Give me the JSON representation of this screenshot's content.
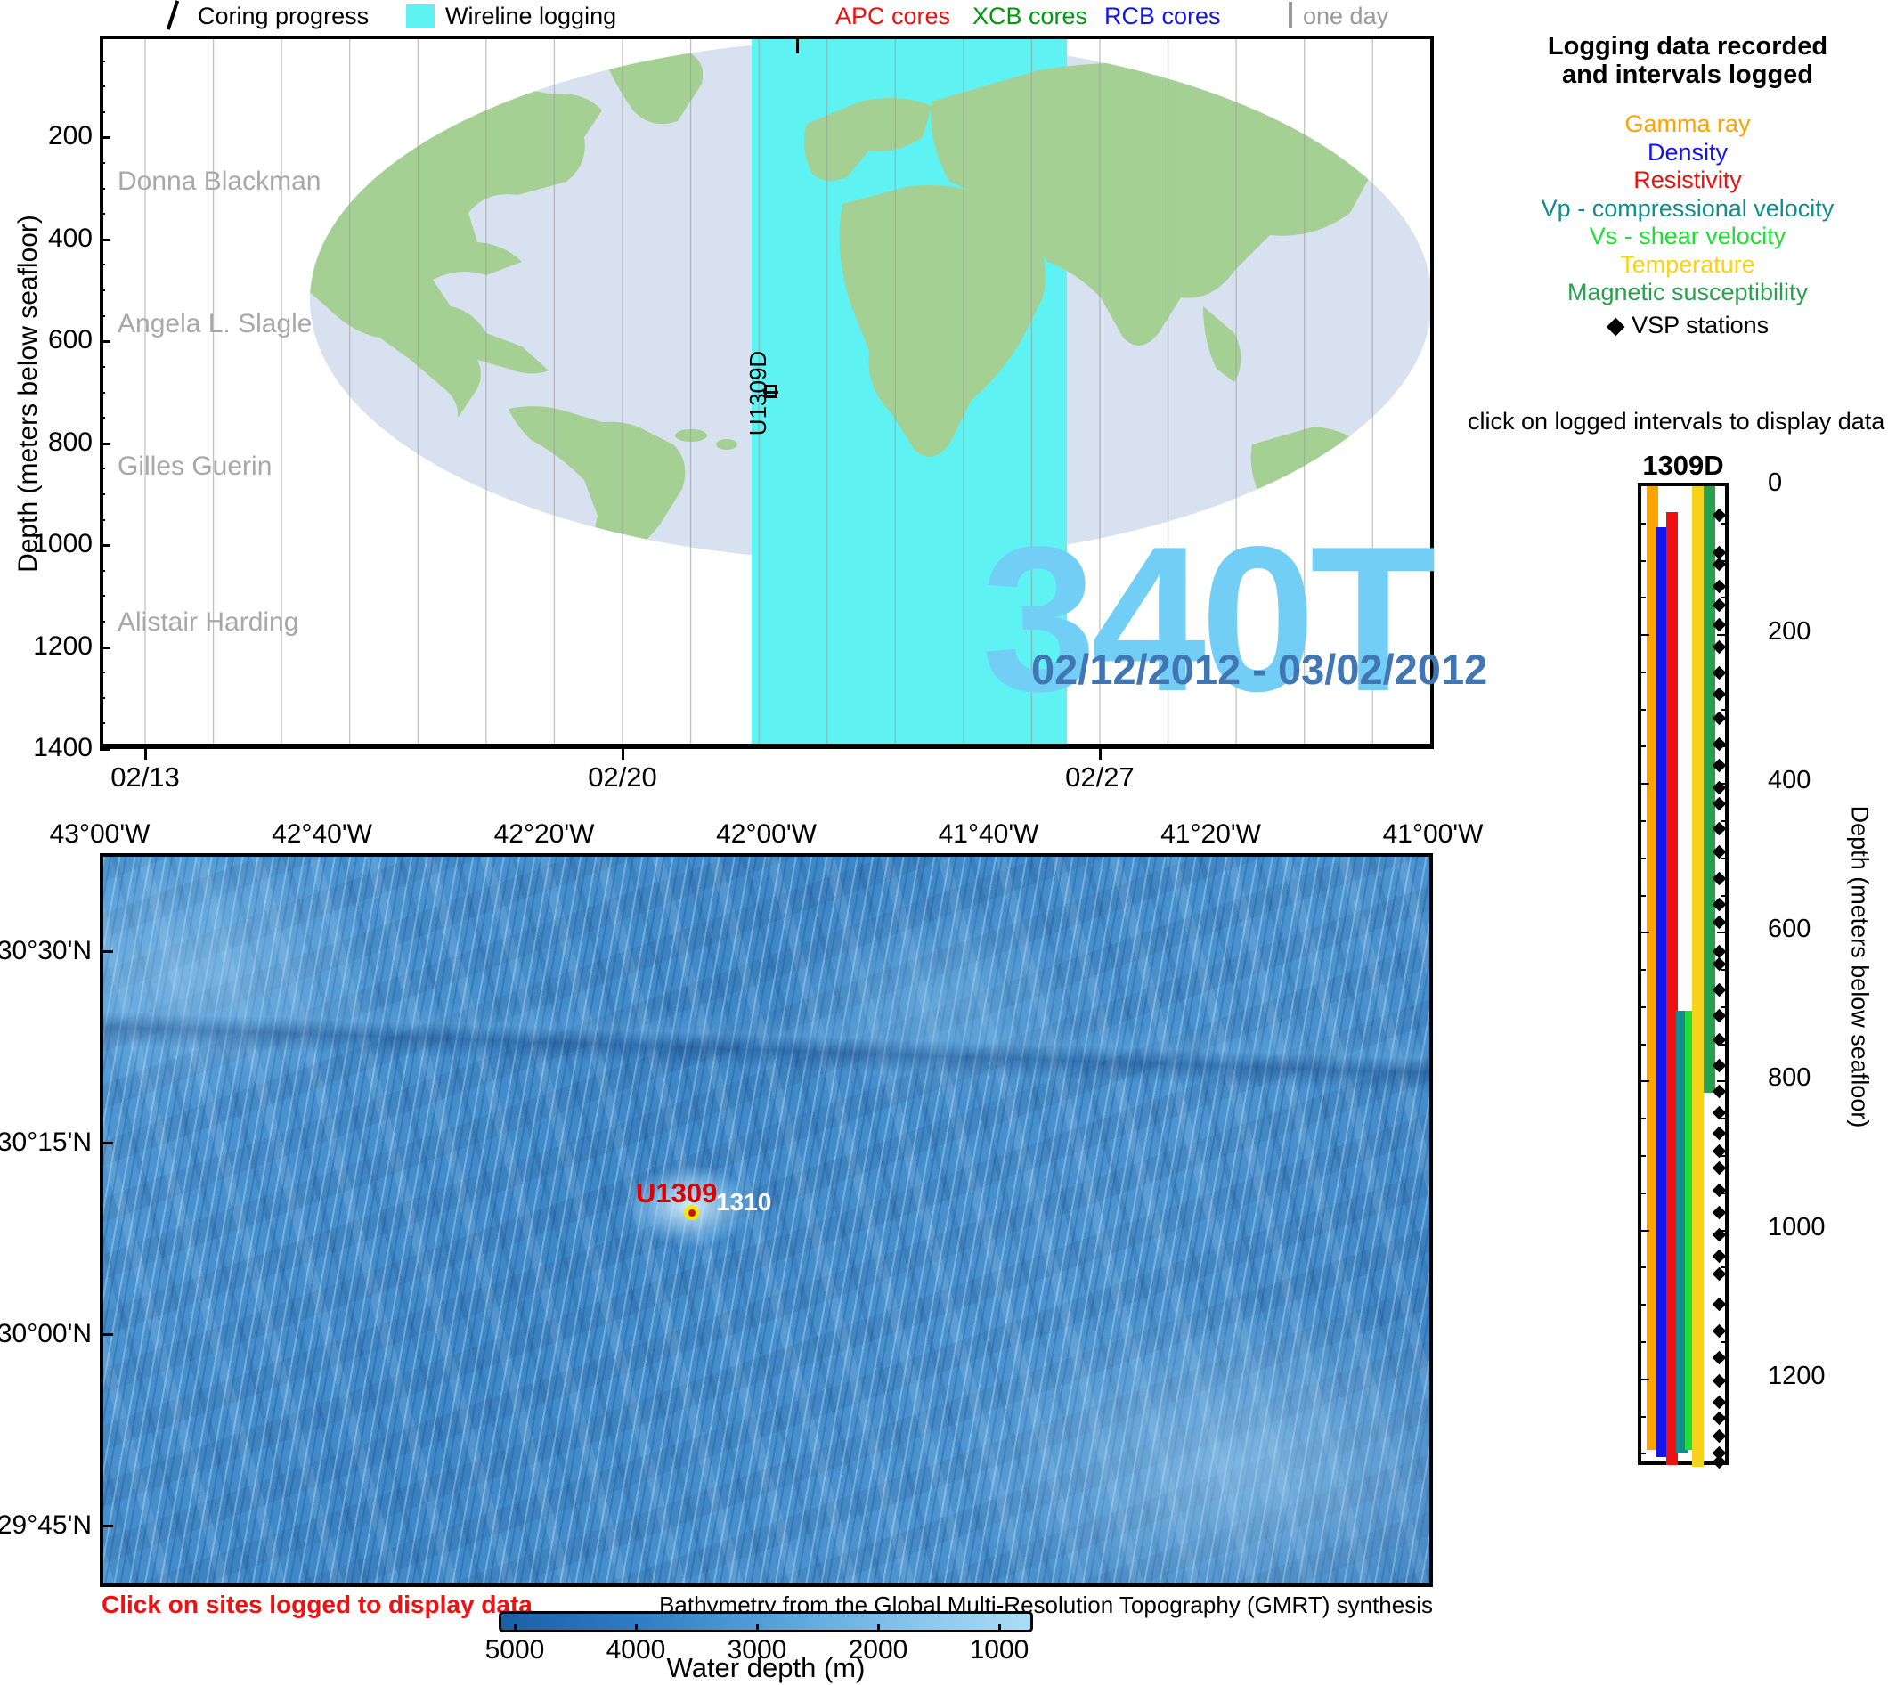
{
  "top_legend": {
    "coring_label": "Coring progress",
    "wireline_label": "Wireline logging",
    "wireline_color": "#5EF2F2",
    "apc_label": "APC cores",
    "apc_color": "#F21010",
    "xcb_label": "XCB cores",
    "xcb_color": "#00990D",
    "rcb_label": "RCB cores",
    "rcb_color": "#1515EE",
    "one_day_label": "one day",
    "one_day_color": "#9a9a9a"
  },
  "time_chart": {
    "ylabel": "Depth (meters below seafloor)",
    "depth_ticks": [
      200,
      400,
      600,
      800,
      1000,
      1200,
      1400
    ],
    "date_ticks": [
      "02/13",
      "02/20",
      "02/27"
    ],
    "scientists": [
      "Donna Blackman",
      "Angela L. Slagle",
      "Gilles Guerin",
      "Alistair Harding"
    ],
    "hole_label": "U1309D",
    "expedition": "340T",
    "expedition_color": "#72CEF4",
    "date_range": "02/12/2012 - 03/02/2012",
    "date_range_color": "#4076B4"
  },
  "logging_legend": {
    "title_line1": "Logging data recorded",
    "title_line2": "and intervals logged",
    "items": [
      {
        "label": "Gamma ray",
        "color": "#FFA300"
      },
      {
        "label": "Density",
        "color": "#1414EE"
      },
      {
        "label": "Resistivity",
        "color": "#EE1111"
      },
      {
        "label": "Vp - compressional velocity",
        "color": "#128C8C"
      },
      {
        "label": "Vs - shear velocity",
        "color": "#21DD35"
      },
      {
        "label": "Temperature",
        "color": "#F5D31B"
      },
      {
        "label": "Magnetic susceptibility",
        "color": "#2AA04E"
      }
    ],
    "vsp_label": "◆ VSP stations",
    "click_hint": "click on logged intervals to display data"
  },
  "log_column": {
    "title": "1309D",
    "ylabel": "Depth (meters below seafloor)",
    "depth_labels": [
      0,
      200,
      400,
      600,
      800,
      1000,
      1200
    ],
    "depth_max_m": 1320
  },
  "map": {
    "lon_labels": [
      "43°00'W",
      "42°40'W",
      "42°20'W",
      "42°00'W",
      "41°40'W",
      "41°20'W",
      "41°00'W"
    ],
    "lat_labels": [
      "30°30'N",
      "30°15'N",
      "30°00'N",
      "29°45'N"
    ],
    "site_label": "U1309",
    "site2_label": "1310",
    "click_text": "Click on sites logged to display data",
    "credit": "Bathymetry from the Global Multi-Resolution Topography (GMRT) synthesis",
    "colorbar": {
      "labels": [
        "5000",
        "4000",
        "3000",
        "2000",
        "1000"
      ],
      "title": "Water depth (m)"
    }
  },
  "chart_data": [
    {
      "type": "area",
      "name": "expedition-timeline",
      "title": "340T",
      "subtitle": "02/12/2012 - 03/02/2012",
      "xlabel": "date",
      "x_ticks": [
        "02/13",
        "02/20",
        "02/27"
      ],
      "x_range": [
        "02/12/2012",
        "03/02/2012"
      ],
      "ylabel": "Depth (meters below seafloor)",
      "ylim": [
        0,
        1400
      ],
      "grid": "vertical, one gridline per day",
      "wireline_logging_interval": {
        "start_day_index": 8.9,
        "end_day_index": 13.5,
        "start_label": "02/22",
        "end_label": "02/26"
      },
      "hole_marker": {
        "label": "U1309D",
        "day_index": 9.0,
        "depth_m": 700
      }
    },
    {
      "type": "bar",
      "name": "logged-intervals-1309D",
      "title": "1309D",
      "ylabel": "Depth (meters below seafloor)",
      "ylim": [
        0,
        1320
      ],
      "series": [
        {
          "name": "Gamma ray",
          "color": "#FFA300",
          "intervals_mbsf": [
            [
              0,
              1295
            ]
          ]
        },
        {
          "name": "Density",
          "color": "#1414EE",
          "intervals_mbsf": [
            [
              55,
              1305
            ]
          ]
        },
        {
          "name": "Resistivity",
          "color": "#EE1111",
          "intervals_mbsf": [
            [
              35,
              1315
            ]
          ]
        },
        {
          "name": "Vp - compressional velocity",
          "color": "#128C8C",
          "intervals_mbsf": [
            [
              705,
              1300
            ]
          ]
        },
        {
          "name": "Vs - shear velocity",
          "color": "#21DD35",
          "intervals_mbsf": [
            [
              705,
              1295
            ]
          ]
        },
        {
          "name": "Temperature",
          "color": "#F5D31B",
          "intervals_mbsf": [
            [
              0,
              1318
            ]
          ]
        },
        {
          "name": "Magnetic susceptibility",
          "color": "#2AA04E",
          "intervals_mbsf": [
            [
              0,
              815
            ]
          ]
        }
      ],
      "vsp_station_depths_mbsf": [
        38,
        89,
        104,
        134,
        159,
        185,
        215,
        250,
        279,
        311,
        346,
        374,
        405,
        426,
        459,
        491,
        526,
        561,
        585,
        625,
        641,
        676,
        711,
        743,
        778,
        812,
        841,
        869,
        893,
        916,
        945,
        975,
        1005,
        1034,
        1058,
        1099,
        1134,
        1171,
        1201,
        1230,
        1252,
        1276,
        1298,
        1310
      ]
    }
  ]
}
